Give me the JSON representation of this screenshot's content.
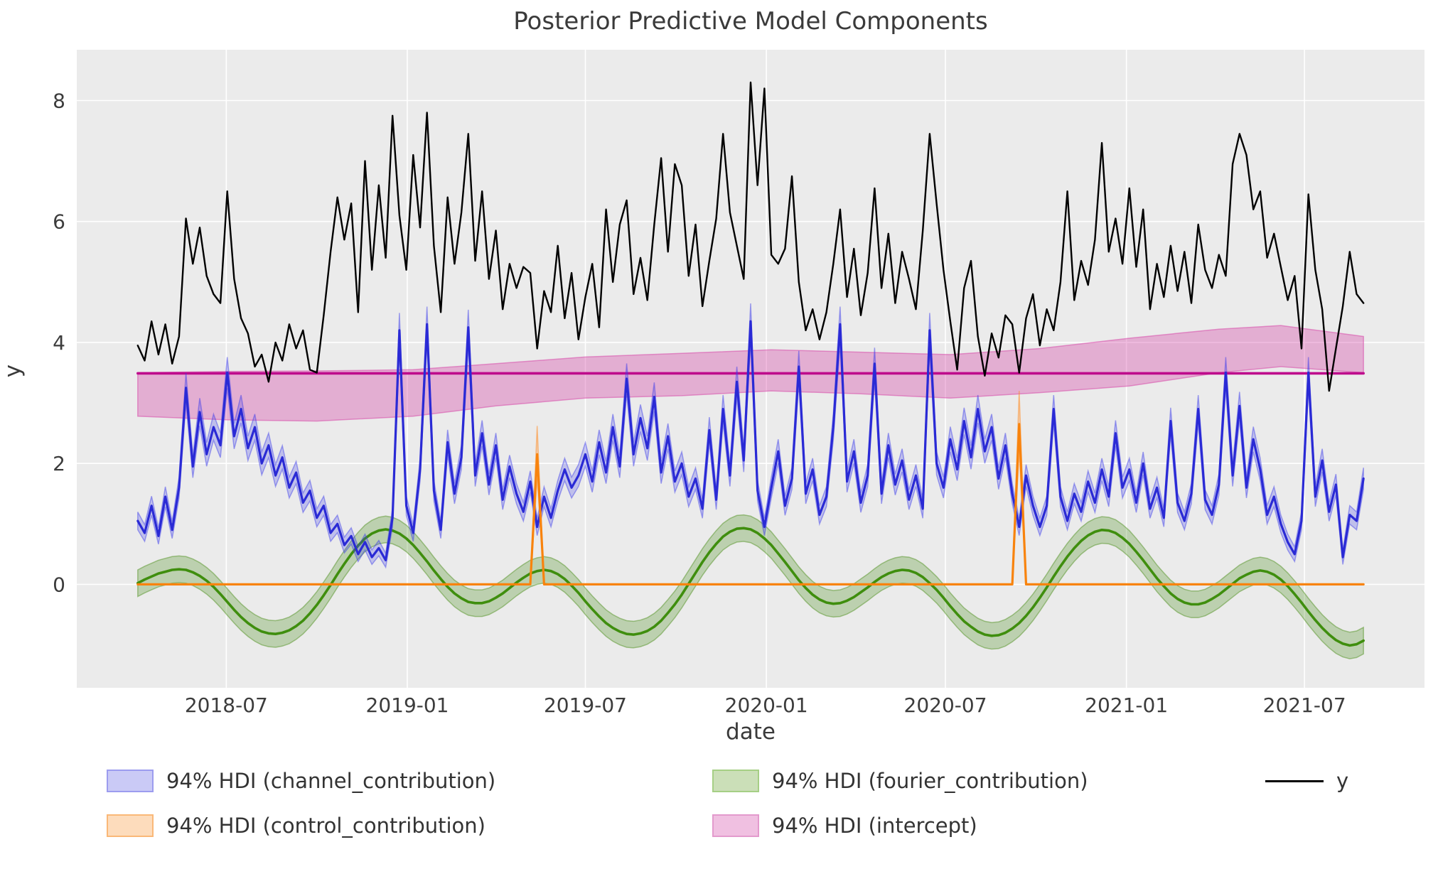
{
  "title": "Posterior Predictive Model Components",
  "axes": {
    "xlabel": "date",
    "ylabel": "y"
  },
  "legend": {
    "items": [
      {
        "id": "channel",
        "label": "94% HDI (channel_contribution)",
        "fill": "#cacaf6",
        "stroke": "#9c9cef",
        "col": 0,
        "row": 0
      },
      {
        "id": "control",
        "label": "94% HDI (control_contribution)",
        "fill": "#fddcbc",
        "stroke": "#fab878",
        "col": 0,
        "row": 1
      },
      {
        "id": "fourier",
        "label": "94% HDI (fourier_contribution)",
        "fill": "#cbdfb8",
        "stroke": "#a6cf85",
        "col": 1,
        "row": 0
      },
      {
        "id": "intercept",
        "label": "94% HDI (intercept)",
        "fill": "#f0c0e1",
        "stroke": "#e39acd",
        "col": 1,
        "row": 1
      },
      {
        "id": "y",
        "label": "y",
        "line": "#000000",
        "col": 2,
        "row": 0
      }
    ]
  },
  "chart_data": {
    "type": "line",
    "title": "Posterior Predictive Model Components",
    "xlabel": "date",
    "ylabel": "y",
    "grid": true,
    "legend_position": "bottom",
    "plot_bg": "#ebebeb",
    "grid_color": "#ffffff",
    "ylim": [
      -1.71,
      8.84
    ],
    "yticks": [
      0,
      2,
      4,
      6,
      8
    ],
    "xticks": [
      {
        "date": "2018-07-01",
        "label": "2018-07"
      },
      {
        "date": "2019-01-01",
        "label": "2019-01"
      },
      {
        "date": "2019-07-01",
        "label": "2019-07"
      },
      {
        "date": "2020-01-01",
        "label": "2020-01"
      },
      {
        "date": "2020-07-01",
        "label": "2020-07"
      },
      {
        "date": "2021-01-01",
        "label": "2021-01"
      },
      {
        "date": "2021-07-01",
        "label": "2021-07"
      }
    ],
    "x_margin_days": 62,
    "dates": [
      "2018-04-02",
      "2018-04-09",
      "2018-04-16",
      "2018-04-23",
      "2018-04-30",
      "2018-05-07",
      "2018-05-14",
      "2018-05-21",
      "2018-05-28",
      "2018-06-04",
      "2018-06-11",
      "2018-06-18",
      "2018-06-25",
      "2018-07-02",
      "2018-07-09",
      "2018-07-16",
      "2018-07-23",
      "2018-07-30",
      "2018-08-06",
      "2018-08-13",
      "2018-08-20",
      "2018-08-27",
      "2018-09-03",
      "2018-09-10",
      "2018-09-17",
      "2018-09-24",
      "2018-10-01",
      "2018-10-08",
      "2018-10-15",
      "2018-10-22",
      "2018-10-29",
      "2018-11-05",
      "2018-11-12",
      "2018-11-19",
      "2018-11-26",
      "2018-12-03",
      "2018-12-10",
      "2018-12-17",
      "2018-12-24",
      "2018-12-31",
      "2019-01-07",
      "2019-01-14",
      "2019-01-21",
      "2019-01-28",
      "2019-02-04",
      "2019-02-11",
      "2019-02-18",
      "2019-02-25",
      "2019-03-04",
      "2019-03-11",
      "2019-03-18",
      "2019-03-25",
      "2019-04-01",
      "2019-04-08",
      "2019-04-15",
      "2019-04-22",
      "2019-04-29",
      "2019-05-06",
      "2019-05-13",
      "2019-05-20",
      "2019-05-27",
      "2019-06-03",
      "2019-06-10",
      "2019-06-17",
      "2019-06-24",
      "2019-07-01",
      "2019-07-08",
      "2019-07-15",
      "2019-07-22",
      "2019-07-29",
      "2019-08-05",
      "2019-08-12",
      "2019-08-19",
      "2019-08-26",
      "2019-09-02",
      "2019-09-09",
      "2019-09-16",
      "2019-09-23",
      "2019-09-30",
      "2019-10-07",
      "2019-10-14",
      "2019-10-21",
      "2019-10-28",
      "2019-11-04",
      "2019-11-11",
      "2019-11-18",
      "2019-11-25",
      "2019-12-02",
      "2019-12-09",
      "2019-12-16",
      "2019-12-23",
      "2019-12-30",
      "2020-01-06",
      "2020-01-13",
      "2020-01-20",
      "2020-01-27",
      "2020-02-03",
      "2020-02-10",
      "2020-02-17",
      "2020-02-24",
      "2020-03-02",
      "2020-03-09",
      "2020-03-16",
      "2020-03-23",
      "2020-03-30",
      "2020-04-06",
      "2020-04-13",
      "2020-04-20",
      "2020-04-27",
      "2020-05-04",
      "2020-05-11",
      "2020-05-18",
      "2020-05-25",
      "2020-06-01",
      "2020-06-08",
      "2020-06-15",
      "2020-06-22",
      "2020-06-29",
      "2020-07-06",
      "2020-07-13",
      "2020-07-20",
      "2020-07-27",
      "2020-08-03",
      "2020-08-10",
      "2020-08-17",
      "2020-08-24",
      "2020-08-31",
      "2020-09-07",
      "2020-09-14",
      "2020-09-21",
      "2020-09-28",
      "2020-10-05",
      "2020-10-12",
      "2020-10-19",
      "2020-10-26",
      "2020-11-02",
      "2020-11-09",
      "2020-11-16",
      "2020-11-23",
      "2020-11-30",
      "2020-12-07",
      "2020-12-14",
      "2020-12-21",
      "2020-12-28",
      "2021-01-04",
      "2021-01-11",
      "2021-01-18",
      "2021-01-25",
      "2021-02-01",
      "2021-02-08",
      "2021-02-15",
      "2021-02-22",
      "2021-03-01",
      "2021-03-08",
      "2021-03-15",
      "2021-03-22",
      "2021-03-29",
      "2021-04-05",
      "2021-04-12",
      "2021-04-19",
      "2021-04-26",
      "2021-05-03",
      "2021-05-10",
      "2021-05-17",
      "2021-05-24",
      "2021-05-31",
      "2021-06-07",
      "2021-06-14",
      "2021-06-21",
      "2021-06-28",
      "2021-07-05",
      "2021-07-12",
      "2021-07-19",
      "2021-07-26",
      "2021-08-02",
      "2021-08-09",
      "2021-08-16",
      "2021-08-23",
      "2021-08-30"
    ],
    "series": {
      "y": {
        "label": "y",
        "color": "#000000",
        "linewidth": 2.4,
        "values": [
          3.95,
          3.7,
          4.35,
          3.8,
          4.3,
          3.65,
          4.1,
          6.05,
          5.3,
          5.9,
          5.1,
          4.8,
          4.65,
          6.5,
          5.05,
          4.4,
          4.15,
          3.6,
          3.8,
          3.35,
          4.0,
          3.7,
          4.3,
          3.9,
          4.2,
          3.55,
          3.5,
          4.45,
          5.5,
          6.4,
          5.7,
          6.3,
          4.5,
          7.0,
          5.2,
          6.6,
          5.4,
          7.75,
          6.1,
          5.2,
          7.1,
          5.9,
          7.8,
          5.6,
          4.5,
          6.4,
          5.3,
          6.15,
          7.45,
          5.35,
          6.5,
          5.05,
          5.85,
          4.55,
          5.3,
          4.9,
          5.25,
          5.15,
          3.9,
          4.85,
          4.5,
          5.6,
          4.4,
          5.15,
          4.05,
          4.75,
          5.3,
          4.25,
          6.2,
          5.0,
          5.95,
          6.35,
          4.8,
          5.4,
          4.7,
          5.95,
          7.05,
          5.5,
          6.95,
          6.6,
          5.1,
          5.95,
          4.6,
          5.35,
          6.05,
          7.45,
          6.15,
          5.6,
          5.05,
          8.3,
          6.6,
          8.2,
          5.45,
          5.3,
          5.55,
          6.75,
          5.0,
          4.2,
          4.55,
          4.05,
          4.5,
          5.3,
          6.2,
          4.75,
          5.55,
          4.45,
          5.15,
          6.55,
          4.9,
          5.8,
          4.65,
          5.5,
          5.05,
          4.55,
          5.85,
          7.45,
          6.3,
          5.2,
          4.35,
          3.55,
          4.9,
          5.35,
          4.1,
          3.45,
          4.15,
          3.75,
          4.45,
          4.3,
          3.5,
          4.4,
          4.8,
          3.95,
          4.55,
          4.2,
          5.0,
          6.5,
          4.7,
          5.35,
          4.95,
          5.7,
          7.3,
          5.5,
          6.05,
          5.3,
          6.55,
          5.25,
          6.2,
          4.55,
          5.3,
          4.75,
          5.6,
          4.85,
          5.5,
          4.65,
          5.95,
          5.2,
          4.9,
          5.45,
          5.1,
          6.95,
          7.45,
          7.1,
          6.2,
          6.5,
          5.4,
          5.8,
          5.25,
          4.7,
          5.1,
          3.9,
          6.45,
          5.2,
          4.55,
          3.2,
          3.9,
          4.6,
          5.5,
          4.8,
          4.65
        ]
      },
      "channel_contribution": {
        "label": "94% HDI (channel_contribution)",
        "line_color": "#2a2ad5",
        "band_fill": "rgba(60,60,235,0.25)",
        "band_edge": "rgba(60,60,235,0.45)",
        "linewidth": 3.2,
        "hdi_halfwidth_base": 0.1,
        "hdi_halfwidth_per_unit": 0.045,
        "mean": [
          1.05,
          0.85,
          1.3,
          0.8,
          1.45,
          0.9,
          1.6,
          3.25,
          1.95,
          2.85,
          2.15,
          2.6,
          2.3,
          3.5,
          2.45,
          2.9,
          2.25,
          2.6,
          2.0,
          2.3,
          1.8,
          2.1,
          1.6,
          1.85,
          1.35,
          1.55,
          1.1,
          1.3,
          0.85,
          1.0,
          0.65,
          0.8,
          0.5,
          0.7,
          0.45,
          0.6,
          0.4,
          1.1,
          4.2,
          1.3,
          0.85,
          1.9,
          4.3,
          1.55,
          0.9,
          2.35,
          1.5,
          2.1,
          4.25,
          1.8,
          2.5,
          1.65,
          2.3,
          1.4,
          1.95,
          1.5,
          1.2,
          1.7,
          0.95,
          1.45,
          1.1,
          1.55,
          1.9,
          1.6,
          1.8,
          2.15,
          1.7,
          2.35,
          1.85,
          2.6,
          1.95,
          3.4,
          2.15,
          2.75,
          2.25,
          3.1,
          1.85,
          2.45,
          1.7,
          2.0,
          1.45,
          1.75,
          1.25,
          2.55,
          1.4,
          2.9,
          1.8,
          3.35,
          2.05,
          4.35,
          1.55,
          0.95,
          1.6,
          2.2,
          1.3,
          1.75,
          3.6,
          1.5,
          1.9,
          1.15,
          1.45,
          2.6,
          4.3,
          1.7,
          2.2,
          1.35,
          1.8,
          3.65,
          1.5,
          2.3,
          1.65,
          2.05,
          1.4,
          1.8,
          1.25,
          4.2,
          2.0,
          1.6,
          2.4,
          1.9,
          2.7,
          2.1,
          2.9,
          2.2,
          2.6,
          1.75,
          2.3,
          1.5,
          0.95,
          1.8,
          1.3,
          0.95,
          1.3,
          2.9,
          1.45,
          1.05,
          1.5,
          1.2,
          1.7,
          1.35,
          1.9,
          1.45,
          2.5,
          1.6,
          1.9,
          1.35,
          2.0,
          1.25,
          1.6,
          1.1,
          2.7,
          1.35,
          1.05,
          1.5,
          2.9,
          1.4,
          1.15,
          1.65,
          3.5,
          1.8,
          2.95,
          1.6,
          2.4,
          1.9,
          1.15,
          1.45,
          1.0,
          0.7,
          0.5,
          1.05,
          3.5,
          1.45,
          2.05,
          1.2,
          1.65,
          0.45,
          1.15,
          1.05,
          1.75
        ]
      },
      "control_contribution": {
        "label": "94% HDI (control_contribution)",
        "line_color": "#f8830d",
        "band_fill": "rgba(255,140,35,0.30)",
        "band_edge": "rgba(255,140,35,0.5)",
        "linewidth": 3.2,
        "baseline": 0,
        "spikes": [
          {
            "date": "2019-05-13",
            "mean_peak": 2.15,
            "hdi_upper_peak": 2.62,
            "hdi_lower_peak": 1.75
          },
          {
            "date": "2020-09-14",
            "mean_peak": 2.65,
            "hdi_upper_peak": 3.2,
            "hdi_lower_peak": 2.2
          }
        ]
      },
      "fourier_contribution": {
        "label": "94% HDI (fourier_contribution)",
        "line_color": "#3f8e0e",
        "band_fill": "rgba(70,140,20,0.28)",
        "band_edge": "rgba(70,140,20,0.45)",
        "linewidth": 3.6,
        "hdi_halfwidth": 0.22,
        "mean": [
          0.02,
          0.08,
          0.13,
          0.18,
          0.21,
          0.24,
          0.25,
          0.24,
          0.2,
          0.14,
          0.06,
          -0.04,
          -0.16,
          -0.29,
          -0.42,
          -0.54,
          -0.64,
          -0.72,
          -0.78,
          -0.81,
          -0.82,
          -0.8,
          -0.76,
          -0.69,
          -0.6,
          -0.48,
          -0.34,
          -0.18,
          -0.01,
          0.17,
          0.34,
          0.5,
          0.64,
          0.76,
          0.84,
          0.89,
          0.91,
          0.89,
          0.84,
          0.76,
          0.65,
          0.52,
          0.38,
          0.23,
          0.09,
          -0.04,
          -0.15,
          -0.23,
          -0.29,
          -0.31,
          -0.31,
          -0.28,
          -0.22,
          -0.15,
          -0.06,
          0.03,
          0.11,
          0.18,
          0.22,
          0.24,
          0.22,
          0.17,
          0.09,
          -0.02,
          -0.14,
          -0.28,
          -0.41,
          -0.53,
          -0.64,
          -0.72,
          -0.78,
          -0.82,
          -0.83,
          -0.81,
          -0.77,
          -0.7,
          -0.6,
          -0.47,
          -0.33,
          -0.17,
          0.01,
          0.19,
          0.37,
          0.53,
          0.67,
          0.79,
          0.87,
          0.92,
          0.93,
          0.91,
          0.85,
          0.76,
          0.65,
          0.51,
          0.37,
          0.22,
          0.07,
          -0.06,
          -0.17,
          -0.25,
          -0.3,
          -0.32,
          -0.31,
          -0.27,
          -0.21,
          -0.13,
          -0.05,
          0.04,
          0.12,
          0.18,
          0.22,
          0.24,
          0.23,
          0.19,
          0.12,
          0.02,
          -0.09,
          -0.22,
          -0.36,
          -0.49,
          -0.61,
          -0.7,
          -0.78,
          -0.83,
          -0.85,
          -0.84,
          -0.8,
          -0.73,
          -0.64,
          -0.52,
          -0.38,
          -0.22,
          -0.05,
          0.13,
          0.3,
          0.46,
          0.6,
          0.72,
          0.81,
          0.87,
          0.9,
          0.89,
          0.85,
          0.77,
          0.67,
          0.54,
          0.4,
          0.25,
          0.1,
          -0.03,
          -0.15,
          -0.24,
          -0.3,
          -0.33,
          -0.33,
          -0.3,
          -0.24,
          -0.17,
          -0.08,
          0.01,
          0.1,
          0.16,
          0.21,
          0.23,
          0.21,
          0.16,
          0.08,
          -0.03,
          -0.16,
          -0.3,
          -0.45,
          -0.59,
          -0.72,
          -0.83,
          -0.92,
          -0.98,
          -1.01,
          -0.99,
          -0.93
        ]
      },
      "intercept": {
        "label": "94% HDI (intercept)",
        "line_color": "#be0b8c",
        "band_fill": "rgba(215,75,170,0.38)",
        "band_edge": "rgba(215,75,170,0.55)",
        "linewidth": 3.6,
        "mean_value": 3.49,
        "hdi_anchors": {
          "dates": [
            "2018-04-02",
            "2018-07-02",
            "2018-10-01",
            "2019-01-07",
            "2019-04-01",
            "2019-07-01",
            "2019-10-07",
            "2020-01-06",
            "2020-04-06",
            "2020-07-06",
            "2020-10-05",
            "2021-01-04",
            "2021-04-05",
            "2021-06-07",
            "2021-08-30"
          ],
          "lower": [
            2.78,
            2.72,
            2.7,
            2.78,
            2.95,
            3.08,
            3.12,
            3.2,
            3.15,
            3.08,
            3.17,
            3.28,
            3.5,
            3.6,
            3.5
          ],
          "upper": [
            3.5,
            3.52,
            3.53,
            3.55,
            3.65,
            3.76,
            3.82,
            3.88,
            3.84,
            3.8,
            3.9,
            4.07,
            4.22,
            4.28,
            4.1
          ]
        }
      }
    }
  }
}
